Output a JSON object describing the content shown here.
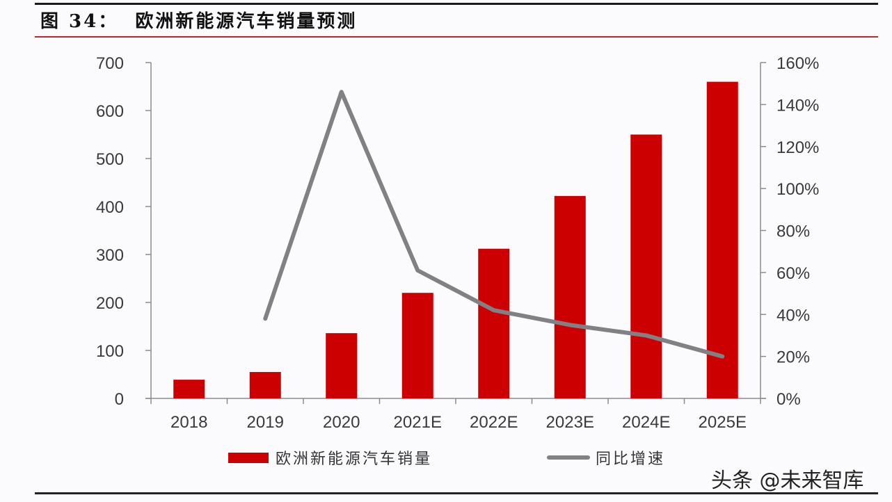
{
  "header": {
    "figure_title": "图 34：  欧洲新能源汽车销量预测"
  },
  "legend": {
    "bar_label": "欧洲新能源汽车销量",
    "line_label": "同比增速"
  },
  "watermark": "头条 @未来智库",
  "colors": {
    "bar": "#cc0000",
    "line": "#808085",
    "title_rule": "#c0272d",
    "axis": "#8a8a90"
  },
  "chart_data": {
    "type": "bar+line",
    "title": "欧洲新能源汽车销量预测",
    "categories": [
      "2018",
      "2019",
      "2020",
      "2021E",
      "2022E",
      "2023E",
      "2024E",
      "2025E"
    ],
    "series": [
      {
        "name": "欧洲新能源汽车销量",
        "type": "bar",
        "axis": "left",
        "values": [
          39,
          55,
          136,
          220,
          312,
          422,
          550,
          660
        ]
      },
      {
        "name": "同比增速",
        "type": "line",
        "axis": "right",
        "values": [
          null,
          38,
          146,
          61,
          42,
          35,
          30,
          20
        ],
        "unit": "%"
      }
    ],
    "y_left": {
      "ylim": [
        0,
        700
      ],
      "ticks": [
        "0",
        "100",
        "200",
        "300",
        "400",
        "500",
        "600",
        "700"
      ]
    },
    "y_right": {
      "ylim": [
        0,
        160
      ],
      "ticks": [
        "0%",
        "20%",
        "40%",
        "60%",
        "80%",
        "100%",
        "120%",
        "140%",
        "160%"
      ]
    },
    "xlabel": "",
    "ylabel": "",
    "grid": false,
    "legend_position": "bottom"
  }
}
